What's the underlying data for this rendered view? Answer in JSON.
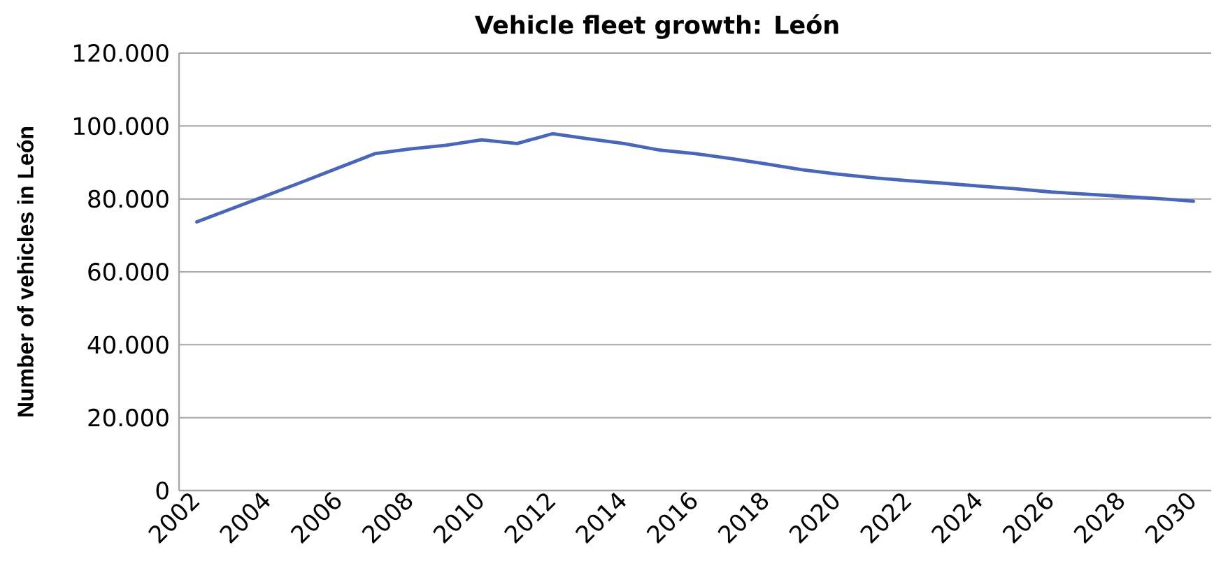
{
  "chart_data": {
    "type": "line",
    "title": "Vehicle fleet growth: León",
    "ylabel": "Number of vehicles in León",
    "categories": [
      "2002",
      null,
      "2004",
      null,
      "2006",
      null,
      "2008",
      null,
      "2010",
      null,
      "2012",
      null,
      "2014",
      null,
      "2016",
      null,
      "2018",
      null,
      "2020",
      null,
      "2022",
      null,
      "2024",
      null,
      "2026",
      null,
      "2028",
      null,
      "2030"
    ],
    "values": [
      73700,
      77400,
      81100,
      84800,
      88600,
      92400,
      93700,
      94700,
      96200,
      95200,
      97900,
      96500,
      95200,
      93400,
      92400,
      91100,
      89600,
      88000,
      86800,
      85800,
      85000,
      84300,
      83500,
      82800,
      81900,
      81300,
      80700,
      80100,
      79400
    ],
    "color": "#4a66b8",
    "ylim": [
      0,
      120000
    ],
    "yticks": [
      0,
      {
        "value": 20000,
        "label": "20.000"
      },
      {
        "value": 40000,
        "label": "40.000"
      },
      {
        "value": 60000,
        "label": "60.000"
      },
      {
        "value": 80000,
        "label": "80.000"
      },
      {
        "value": 100000,
        "label": "100.000"
      },
      {
        "value": 120000,
        "label": "120.000"
      }
    ],
    "grid": "y"
  }
}
